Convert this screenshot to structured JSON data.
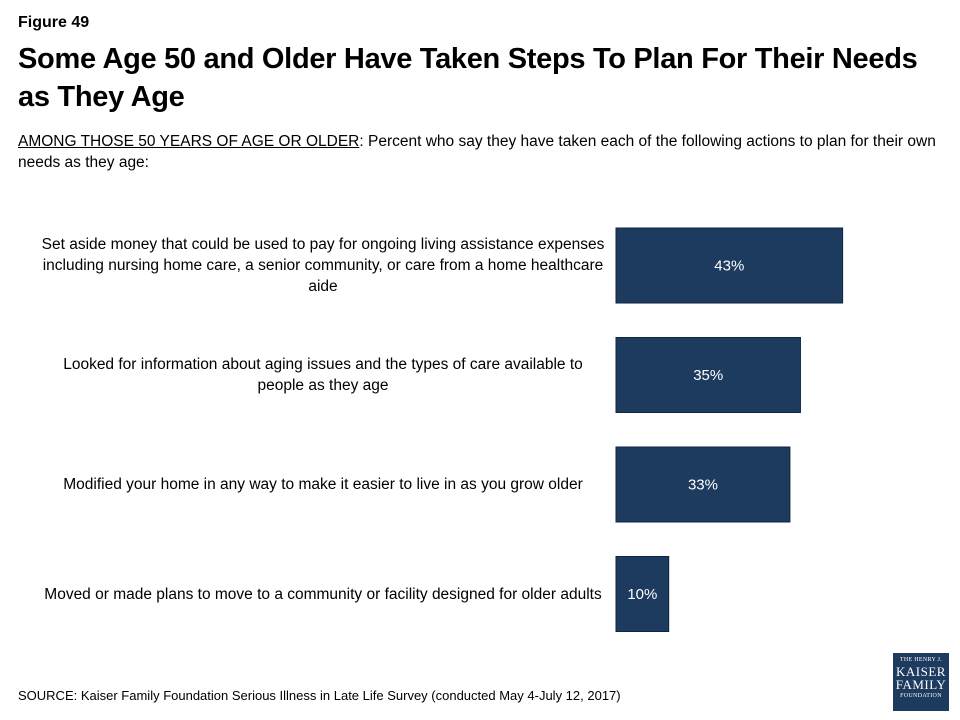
{
  "header": {
    "figure_label": "Figure 49",
    "title": "Some Age 50 and Older Have Taken Steps To Plan For Their Needs as They Age",
    "subtitle_emph": "AMONG THOSE 50 YEARS OF AGE OR OLDER",
    "subtitle_rest": ": Percent who say they have taken each of the following actions to plan for their own needs as they age:"
  },
  "chart_data": {
    "type": "bar",
    "orientation": "horizontal",
    "categories": [
      "Set aside money that could be used to pay for ongoing living assistance expenses including nursing home care, a senior community, or care from a home healthcare aide",
      "Looked for information about aging issues and the types of care available to people as they age",
      "Modified your home in any way to make it easier to live in as you grow older",
      "Moved or made plans to move to a community or facility designed for older adults"
    ],
    "values": [
      43,
      35,
      33,
      10
    ],
    "data_labels": [
      "43%",
      "35%",
      "33%",
      "10%"
    ],
    "xlim": [
      0,
      100
    ],
    "bar_color": "#1d3a5f",
    "label_color": "#ffffff",
    "grid": false,
    "legend": "none"
  },
  "footer": {
    "source": "SOURCE: Kaiser Family Foundation Serious Illness in Late Life Survey (conducted May 4-July 12, 2017)"
  },
  "logo": {
    "line1": "THE HENRY J.",
    "line2": "KAISER",
    "line3": "FAMILY",
    "line4": "FOUNDATION",
    "color": "#1d3a5f"
  }
}
